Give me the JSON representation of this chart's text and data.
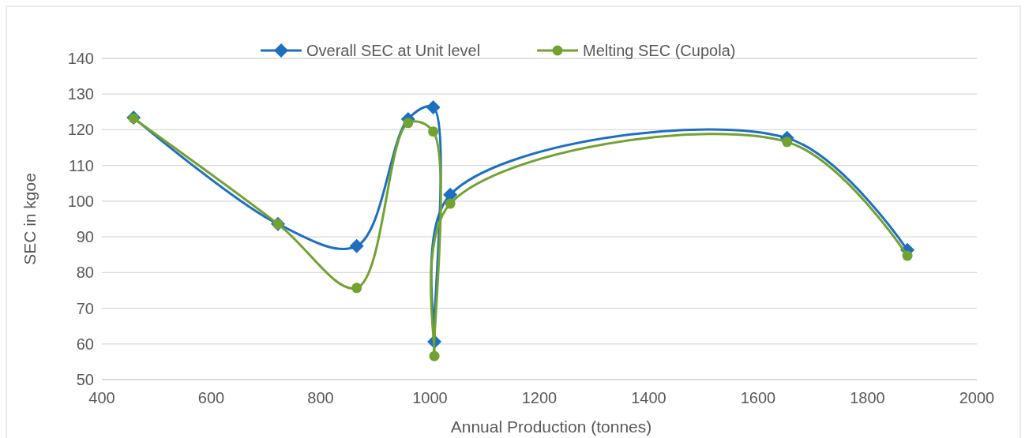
{
  "chart_data": {
    "type": "line",
    "xlabel": "Annual Production (tonnes)",
    "ylabel": "SEC in kgoe",
    "xlim": [
      400,
      2000
    ],
    "ylim": [
      50,
      140
    ],
    "xticks": [
      400,
      600,
      800,
      1000,
      1200,
      1400,
      1600,
      1800,
      2000
    ],
    "yticks": [
      50,
      60,
      70,
      80,
      90,
      100,
      110,
      120,
      130,
      140
    ],
    "grid": "y",
    "legend": "top",
    "line_style": "solid",
    "series": [
      {
        "name": "Overall SEC at Unit level",
        "color": "#1f6fc0",
        "marker": "diamond",
        "x": [
          458,
          722,
          866,
          960,
          1006,
          1008,
          1037,
          1653,
          1873
        ],
        "values": [
          123.4,
          93.6,
          87.4,
          123,
          126.3,
          60.6,
          101.8,
          117.7,
          86.3
        ]
      },
      {
        "name": "Melting SEC (Cupola)",
        "color": "#72a230",
        "marker": "circle",
        "x": [
          458,
          722,
          866,
          960,
          1006,
          1008,
          1037,
          1653,
          1873
        ],
        "values": [
          123.2,
          93.6,
          75.7,
          121.9,
          119.5,
          56.6,
          99.3,
          116.6,
          84.7
        ]
      }
    ]
  }
}
